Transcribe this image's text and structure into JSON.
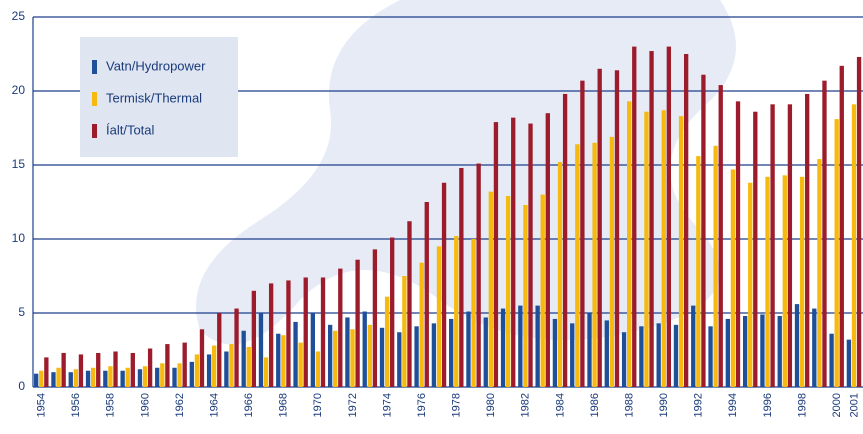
{
  "chart_data": {
    "type": "bar",
    "categories": [
      "1954",
      null,
      "1956",
      null,
      "1958",
      null,
      "1960",
      null,
      "1962",
      null,
      "1964",
      null,
      "1966",
      null,
      "1968",
      null,
      "1970",
      null,
      "1972",
      null,
      "1974",
      null,
      "1976",
      null,
      "1978",
      null,
      "1980",
      null,
      "1982",
      null,
      "1984",
      null,
      "1986",
      null,
      "1988",
      null,
      "1990",
      null,
      "1992",
      null,
      "1994",
      null,
      "1996",
      null,
      "1998",
      null,
      "2000",
      "2001"
    ],
    "series": [
      {
        "name": "Vatn/Hydropower",
        "color": "#1f4f98",
        "values": [
          0.9,
          1.0,
          1.0,
          1.1,
          1.1,
          1.1,
          1.2,
          1.3,
          1.3,
          1.7,
          2.2,
          2.4,
          3.8,
          5.0,
          3.6,
          4.4,
          5.0,
          4.2,
          4.7,
          5.1,
          4.0,
          3.7,
          4.1,
          4.3,
          4.6,
          5.1,
          4.7,
          5.3,
          5.5,
          5.5,
          4.6,
          4.3,
          5.0,
          4.5,
          3.7,
          4.1,
          4.3,
          4.2,
          5.5,
          4.1,
          4.6,
          4.8,
          4.9,
          4.8,
          5.6,
          5.3,
          3.6,
          3.2
        ]
      },
      {
        "name": "Termisk/Thermal",
        "color": "#f5b90f",
        "values": [
          1.1,
          1.3,
          1.2,
          1.3,
          1.4,
          1.3,
          1.4,
          1.6,
          1.6,
          2.2,
          2.8,
          2.9,
          2.7,
          2.0,
          3.5,
          3.0,
          2.4,
          3.8,
          3.9,
          4.2,
          6.1,
          7.5,
          8.4,
          9.5,
          10.2,
          10.0,
          13.2,
          12.9,
          12.3,
          13.0,
          15.2,
          16.4,
          16.5,
          16.9,
          19.3,
          18.6,
          18.7,
          18.3,
          15.6,
          16.3,
          14.7,
          13.8,
          14.2,
          14.3,
          14.2,
          15.4,
          18.1,
          19.1
        ]
      },
      {
        "name": "Íalt/Total",
        "color": "#9c1c2c",
        "values": [
          2.0,
          2.3,
          2.2,
          2.3,
          2.4,
          2.3,
          2.6,
          2.9,
          3.0,
          3.9,
          5.0,
          5.3,
          6.5,
          7.0,
          7.2,
          7.4,
          7.4,
          8.0,
          8.6,
          9.3,
          10.1,
          11.2,
          12.5,
          13.8,
          14.8,
          15.1,
          17.9,
          18.2,
          17.8,
          18.5,
          19.8,
          20.7,
          21.5,
          21.4,
          23.0,
          22.7,
          23.0,
          22.5,
          21.1,
          20.4,
          19.3,
          18.6,
          19.1,
          19.1,
          19.8,
          20.7,
          21.7,
          22.3
        ]
      }
    ],
    "ylim": [
      0,
      25
    ],
    "yticks": [
      0,
      5,
      10,
      15,
      20,
      25
    ],
    "grid": true,
    "legend": "upper left"
  }
}
